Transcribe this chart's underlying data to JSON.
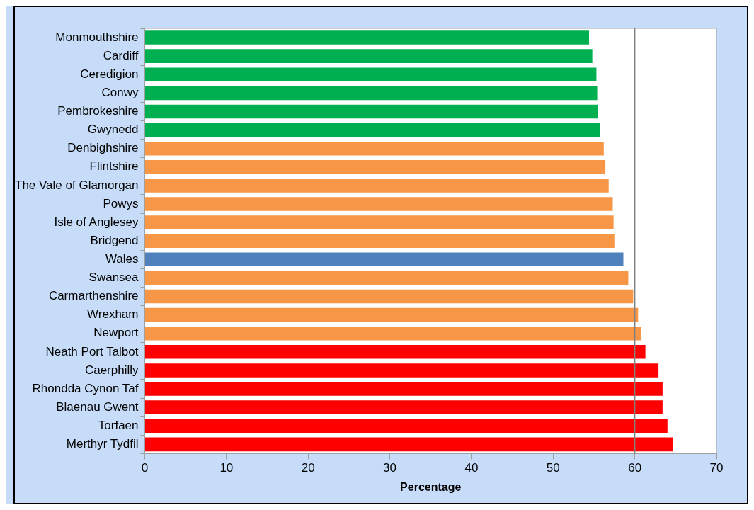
{
  "chart_data": {
    "type": "bar",
    "orientation": "horizontal",
    "xlabel": "Percentage",
    "categories": [
      "Monmouthshire",
      "Cardiff",
      "Ceredigion",
      "Conwy",
      "Pembrokeshire",
      "Gwynedd",
      "Denbighshire",
      "Flintshire",
      "The Vale of Glamorgan",
      "Powys",
      "Isle of Anglesey",
      "Bridgend",
      "Wales",
      "Swansea",
      "Carmarthenshire",
      "Wrexham",
      "Newport",
      "Neath Port Talbot",
      "Caerphilly",
      "Rhondda Cynon Taf",
      "Blaenau Gwent",
      "Torfaen",
      "Merthyr Tydfil"
    ],
    "values": [
      54.4,
      54.8,
      55.3,
      55.4,
      55.5,
      55.7,
      56.2,
      56.4,
      56.8,
      57.3,
      57.4,
      57.5,
      58.6,
      59.2,
      59.8,
      60.4,
      60.8,
      61.3,
      62.9,
      63.4,
      63.4,
      64.0,
      64.7
    ],
    "colors": [
      "#00b050",
      "#00b050",
      "#00b050",
      "#00b050",
      "#00b050",
      "#00b050",
      "#f79646",
      "#f79646",
      "#f79646",
      "#f79646",
      "#f79646",
      "#f79646",
      "#4f81bd",
      "#f79646",
      "#f79646",
      "#f79646",
      "#f79646",
      "#ff0000",
      "#ff0000",
      "#ff0000",
      "#ff0000",
      "#ff0000",
      "#ff0000"
    ],
    "xlim": [
      0,
      70
    ],
    "xticks": [
      0,
      10,
      20,
      30,
      40,
      50,
      60,
      70
    ],
    "ref_lines": [
      {
        "axis": "x",
        "value": 60,
        "color": "#808080"
      }
    ],
    "grid": false,
    "legend": false
  }
}
